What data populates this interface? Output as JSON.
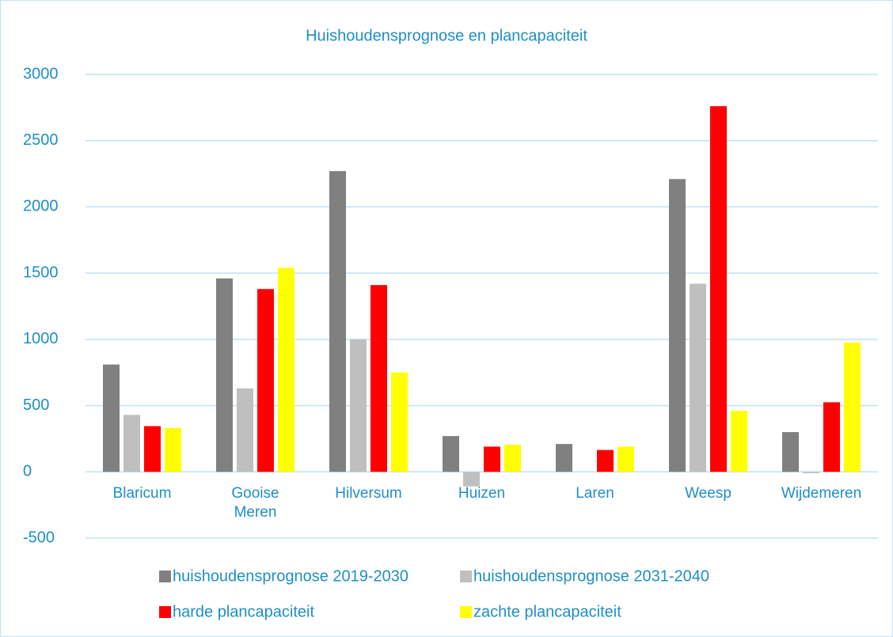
{
  "chart_data": {
    "type": "bar",
    "title": "Huishoudensprognose en plancapaciteit",
    "categories": [
      "Blaricum",
      "Gooise Meren",
      "Hilversum",
      "Huizen",
      "Laren",
      "Weesp",
      "Wijdemeren"
    ],
    "series": [
      {
        "name": "huishoudensprognose 2019-2030",
        "color": "#808080",
        "values": [
          810,
          1460,
          2270,
          270,
          210,
          2210,
          300
        ]
      },
      {
        "name": "huishoudensprognose 2031-2040",
        "color": "#bfbfbf",
        "values": [
          430,
          630,
          1000,
          -110,
          0,
          1420,
          -10
        ]
      },
      {
        "name": "harde plancapaciteit",
        "color": "#ff0000",
        "values": [
          345,
          1380,
          1410,
          190,
          165,
          2760,
          525
        ]
      },
      {
        "name": "zachte plancapaciteit",
        "color": "#ffff00",
        "values": [
          330,
          1540,
          750,
          205,
          190,
          460,
          975
        ]
      }
    ],
    "ylim": [
      -500,
      3000
    ],
    "yticks": [
      -500,
      0,
      500,
      1000,
      1500,
      2000,
      2500,
      3000
    ],
    "grid": true,
    "legend": "bottom"
  }
}
